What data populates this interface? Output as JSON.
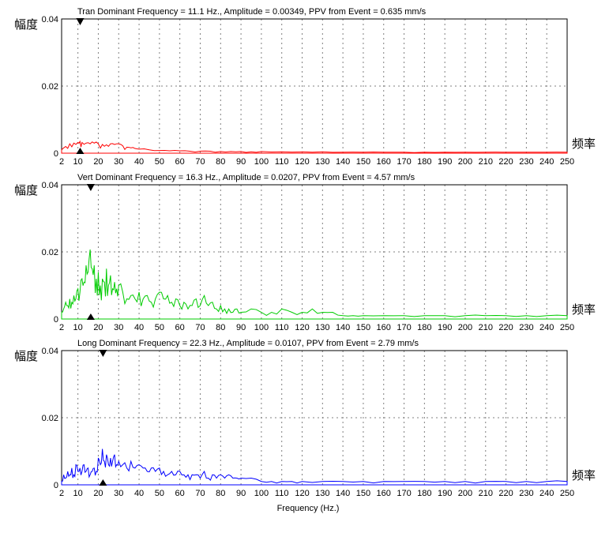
{
  "global": {
    "y_axis_label": "幅度",
    "x_axis_label": "频率",
    "bottom_label": "Frequency (Hz.)",
    "background_color": "#ffffff",
    "axis_color": "#000000",
    "grid_color": "#808080",
    "grid_dash": "2,4",
    "xlim": [
      2,
      250
    ],
    "ylim": [
      0,
      0.04
    ],
    "x_ticks": [
      2,
      10,
      20,
      30,
      40,
      50,
      60,
      70,
      80,
      90,
      100,
      110,
      120,
      130,
      140,
      150,
      160,
      170,
      180,
      190,
      200,
      210,
      220,
      230,
      240,
      250
    ],
    "y_ticks": [
      0,
      0.02,
      0.04
    ],
    "axis_fontsize": 11,
    "label_fontsize": 15,
    "title_fontsize": 11
  },
  "charts": [
    {
      "title": "Tran Dominant Frequency = 11.1 Hz., Amplitude = 0.00349,  PPV from Event = 0.635 mm/s",
      "line_color": "#ff0000",
      "marker_freq": 11.1,
      "marker_top_freq": 11.1,
      "max_amplitude": 0.0035,
      "data": [
        [
          2,
          0.001
        ],
        [
          4,
          0.002
        ],
        [
          6,
          0.0028
        ],
        [
          8,
          0.003
        ],
        [
          10,
          0.0032
        ],
        [
          11,
          0.0035
        ],
        [
          12,
          0.0032
        ],
        [
          14,
          0.003
        ],
        [
          16,
          0.0028
        ],
        [
          18,
          0.003
        ],
        [
          20,
          0.0028
        ],
        [
          22,
          0.0026
        ],
        [
          24,
          0.0025
        ],
        [
          26,
          0.0028
        ],
        [
          28,
          0.0026
        ],
        [
          30,
          0.0028
        ],
        [
          32,
          0.0022
        ],
        [
          34,
          0.0018
        ],
        [
          36,
          0.0016
        ],
        [
          38,
          0.0014
        ],
        [
          40,
          0.0012
        ],
        [
          45,
          0.001
        ],
        [
          50,
          0.0008
        ],
        [
          55,
          0.0007
        ],
        [
          60,
          0.0007
        ],
        [
          65,
          0.0006
        ],
        [
          70,
          0.0006
        ],
        [
          75,
          0.0006
        ],
        [
          80,
          0.0005
        ],
        [
          85,
          0.0005
        ],
        [
          90,
          0.0005
        ],
        [
          95,
          0.0004
        ],
        [
          100,
          0.0005
        ],
        [
          110,
          0.0004
        ],
        [
          120,
          0.0004
        ],
        [
          130,
          0.0004
        ],
        [
          140,
          0.0003
        ],
        [
          150,
          0.0003
        ],
        [
          160,
          0.0003
        ],
        [
          170,
          0.0003
        ],
        [
          180,
          0.0003
        ],
        [
          190,
          0.0003
        ],
        [
          200,
          0.0003
        ],
        [
          210,
          0.0003
        ],
        [
          220,
          0.0003
        ],
        [
          230,
          0.0003
        ],
        [
          240,
          0.0003
        ],
        [
          250,
          0.0003
        ]
      ]
    },
    {
      "title": "Vert Dominant Frequency = 16.3 Hz., Amplitude = 0.0207,  PPV from Event = 4.57 mm/s",
      "line_color": "#00cc00",
      "marker_freq": 16.3,
      "marker_top_freq": 16.3,
      "max_amplitude": 0.0207,
      "data": [
        [
          2,
          0.002
        ],
        [
          3,
          0.003
        ],
        [
          4,
          0.005
        ],
        [
          5,
          0.004
        ],
        [
          6,
          0.006
        ],
        [
          7,
          0.005
        ],
        [
          8,
          0.007
        ],
        [
          9,
          0.006
        ],
        [
          10,
          0.009
        ],
        [
          11,
          0.008
        ],
        [
          12,
          0.012
        ],
        [
          13,
          0.011
        ],
        [
          14,
          0.016
        ],
        [
          15,
          0.014
        ],
        [
          16,
          0.0207
        ],
        [
          17,
          0.015
        ],
        [
          18,
          0.016
        ],
        [
          19,
          0.012
        ],
        [
          20,
          0.014
        ],
        [
          21,
          0.01
        ],
        [
          22,
          0.012
        ],
        [
          23,
          0.011
        ],
        [
          24,
          0.015
        ],
        [
          25,
          0.01
        ],
        [
          26,
          0.013
        ],
        [
          27,
          0.009
        ],
        [
          28,
          0.011
        ],
        [
          29,
          0.009
        ],
        [
          30,
          0.01
        ],
        [
          32,
          0.008
        ],
        [
          34,
          0.006
        ],
        [
          36,
          0.007
        ],
        [
          38,
          0.006
        ],
        [
          40,
          0.008
        ],
        [
          42,
          0.006
        ],
        [
          44,
          0.007
        ],
        [
          46,
          0.005
        ],
        [
          48,
          0.006
        ],
        [
          50,
          0.008
        ],
        [
          52,
          0.006
        ],
        [
          54,
          0.007
        ],
        [
          56,
          0.005
        ],
        [
          58,
          0.006
        ],
        [
          60,
          0.004
        ],
        [
          62,
          0.005
        ],
        [
          64,
          0.003
        ],
        [
          66,
          0.004
        ],
        [
          68,
          0.006
        ],
        [
          70,
          0.004
        ],
        [
          72,
          0.007
        ],
        [
          74,
          0.004
        ],
        [
          76,
          0.005
        ],
        [
          78,
          0.003
        ],
        [
          80,
          0.004
        ],
        [
          82,
          0.003
        ],
        [
          84,
          0.003
        ],
        [
          86,
          0.002
        ],
        [
          88,
          0.003
        ],
        [
          90,
          0.002
        ],
        [
          95,
          0.003
        ],
        [
          100,
          0.002
        ],
        [
          105,
          0.002
        ],
        [
          110,
          0.003
        ],
        [
          115,
          0.002
        ],
        [
          120,
          0.002
        ],
        [
          125,
          0.003
        ],
        [
          130,
          0.002
        ],
        [
          135,
          0.002
        ],
        [
          140,
          0.001
        ],
        [
          145,
          0.001
        ],
        [
          150,
          0.001
        ],
        [
          160,
          0.001
        ],
        [
          170,
          0.001
        ],
        [
          180,
          0.001
        ],
        [
          190,
          0.001
        ],
        [
          200,
          0.001
        ],
        [
          210,
          0.001
        ],
        [
          220,
          0.001
        ],
        [
          230,
          0.001
        ],
        [
          240,
          0.001
        ],
        [
          250,
          0.001
        ]
      ]
    },
    {
      "title": "Long Dominant Frequency = 22.3 Hz., Amplitude = 0.0107,  PPV from Event = 2.79 mm/s",
      "line_color": "#0000ff",
      "marker_freq": 22.3,
      "marker_top_freq": 22.3,
      "max_amplitude": 0.0107,
      "data": [
        [
          2,
          0.001
        ],
        [
          3,
          0.003
        ],
        [
          4,
          0.002
        ],
        [
          5,
          0.004
        ],
        [
          6,
          0.003
        ],
        [
          7,
          0.005
        ],
        [
          8,
          0.003
        ],
        [
          9,
          0.006
        ],
        [
          10,
          0.004
        ],
        [
          11,
          0.005
        ],
        [
          12,
          0.004
        ],
        [
          13,
          0.006
        ],
        [
          14,
          0.004
        ],
        [
          15,
          0.005
        ],
        [
          16,
          0.003
        ],
        [
          17,
          0.004
        ],
        [
          18,
          0.005
        ],
        [
          19,
          0.004
        ],
        [
          20,
          0.008
        ],
        [
          21,
          0.006
        ],
        [
          22,
          0.0107
        ],
        [
          23,
          0.007
        ],
        [
          24,
          0.009
        ],
        [
          25,
          0.006
        ],
        [
          26,
          0.008
        ],
        [
          27,
          0.007
        ],
        [
          28,
          0.009
        ],
        [
          29,
          0.006
        ],
        [
          30,
          0.007
        ],
        [
          32,
          0.006
        ],
        [
          34,
          0.005
        ],
        [
          36,
          0.007
        ],
        [
          38,
          0.005
        ],
        [
          40,
          0.006
        ],
        [
          42,
          0.005
        ],
        [
          44,
          0.004
        ],
        [
          46,
          0.005
        ],
        [
          48,
          0.004
        ],
        [
          50,
          0.005
        ],
        [
          52,
          0.004
        ],
        [
          54,
          0.003
        ],
        [
          56,
          0.004
        ],
        [
          58,
          0.003
        ],
        [
          60,
          0.004
        ],
        [
          62,
          0.003
        ],
        [
          64,
          0.003
        ],
        [
          66,
          0.003
        ],
        [
          68,
          0.003
        ],
        [
          70,
          0.002
        ],
        [
          72,
          0.004
        ],
        [
          74,
          0.002
        ],
        [
          76,
          0.003
        ],
        [
          78,
          0.002
        ],
        [
          80,
          0.003
        ],
        [
          82,
          0.002
        ],
        [
          84,
          0.003
        ],
        [
          86,
          0.002
        ],
        [
          88,
          0.002
        ],
        [
          90,
          0.002
        ],
        [
          95,
          0.002
        ],
        [
          100,
          0.001
        ],
        [
          105,
          0.001
        ],
        [
          110,
          0.001
        ],
        [
          115,
          0.001
        ],
        [
          120,
          0.001
        ],
        [
          130,
          0.001
        ],
        [
          140,
          0.001
        ],
        [
          150,
          0.001
        ],
        [
          160,
          0.001
        ],
        [
          170,
          0.001
        ],
        [
          180,
          0.001
        ],
        [
          190,
          0.001
        ],
        [
          200,
          0.001
        ],
        [
          210,
          0.001
        ],
        [
          220,
          0.001
        ],
        [
          230,
          0.001
        ],
        [
          240,
          0.001
        ],
        [
          250,
          0.001
        ]
      ]
    }
  ]
}
